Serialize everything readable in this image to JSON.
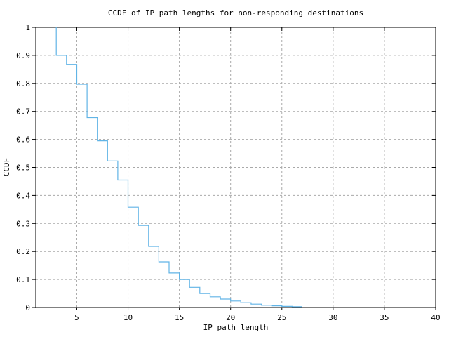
{
  "page": {
    "background": "#ffffff"
  },
  "chart_data": {
    "type": "line",
    "subtype": "ccdf-step",
    "title": "CCDF of IP path lengths for non-responding destinations",
    "xlabel": "IP path length",
    "ylabel": "CCDF",
    "xlim": [
      1,
      40
    ],
    "ylim": [
      0,
      1
    ],
    "x_ticks": [
      5,
      10,
      15,
      20,
      25,
      30,
      35,
      40
    ],
    "x_tick_labels": [
      "5",
      "10",
      "15",
      "20",
      "25",
      "30",
      "35",
      "40"
    ],
    "y_ticks": [
      0,
      0.1,
      0.2,
      0.3,
      0.4,
      0.5,
      0.6,
      0.7,
      0.8,
      0.9,
      1
    ],
    "y_tick_labels": [
      "0",
      "0.1",
      "0.2",
      "0.3",
      "0.4",
      "0.5",
      "0.6",
      "0.7",
      "0.8",
      "0.9",
      "1"
    ],
    "grid": true,
    "legend": "none",
    "line_color": "#61b4e6",
    "grid_color": "#a9a9a9",
    "axis_color": "#000000",
    "series": [
      {
        "name": "CCDF of IP path length",
        "start_x": 3,
        "start_y": 1.0,
        "steps": [
          [
            3,
            0.9
          ],
          [
            4,
            0.868
          ],
          [
            5,
            0.797
          ],
          [
            6,
            0.678
          ],
          [
            7,
            0.595
          ],
          [
            8,
            0.523
          ],
          [
            9,
            0.455
          ],
          [
            10,
            0.358
          ],
          [
            11,
            0.293
          ],
          [
            12,
            0.218
          ],
          [
            13,
            0.163
          ],
          [
            14,
            0.123
          ],
          [
            15,
            0.1
          ],
          [
            16,
            0.072
          ],
          [
            17,
            0.05
          ],
          [
            18,
            0.038
          ],
          [
            19,
            0.03
          ],
          [
            20,
            0.023
          ],
          [
            21,
            0.017
          ],
          [
            22,
            0.012
          ],
          [
            23,
            0.008
          ],
          [
            24,
            0.006
          ],
          [
            25,
            0.004
          ],
          [
            26,
            0.003
          ]
        ],
        "end_x": 27
      }
    ]
  }
}
